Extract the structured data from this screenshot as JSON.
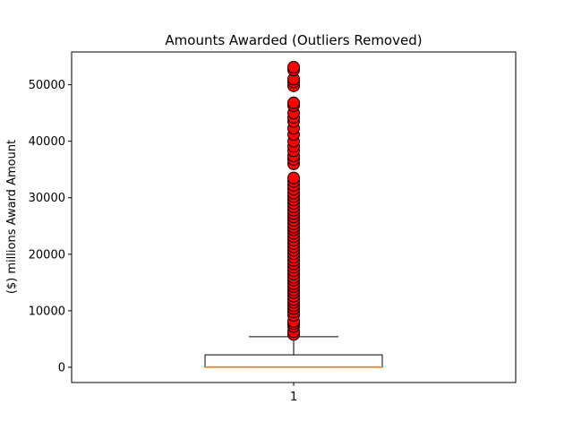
{
  "chart_data": {
    "type": "box",
    "title": "Amounts Awarded (Outliers Removed)",
    "ylabel": "($) millions Award Amount",
    "xlabel": "",
    "categories": [
      "1"
    ],
    "ylim": [
      -2700,
      55800
    ],
    "yticks": [
      0,
      10000,
      20000,
      30000,
      40000,
      50000
    ],
    "yticklabels": [
      "0",
      "10000",
      "20000",
      "30000",
      "40000",
      "50000"
    ],
    "grid": false,
    "box": {
      "whisker_low": 0,
      "q1": 0,
      "median": 50,
      "q3": 2200,
      "whisker_high": 5400
    },
    "outliers": [
      5800,
      6300,
      7200,
      7700,
      8100,
      9200,
      9800,
      10400,
      10900,
      11500,
      12000,
      12600,
      13200,
      13700,
      14300,
      14800,
      15400,
      15900,
      16500,
      17100,
      17700,
      18300,
      18900,
      19500,
      20100,
      20700,
      21300,
      21900,
      22500,
      23100,
      23700,
      24300,
      24800,
      25400,
      26000,
      26600,
      27200,
      27800,
      28400,
      29000,
      29600,
      30200,
      30800,
      31500,
      32200,
      32900,
      33500,
      36000,
      36800,
      37400,
      38300,
      39100,
      40000,
      41200,
      42300,
      43500,
      44200,
      45000,
      46300,
      46800,
      49800,
      50500,
      51000,
      52600,
      53100
    ],
    "colors": {
      "outlier_fill": "#ff0000",
      "outlier_edge": "#000000",
      "median": "#ff7f0e",
      "box_edge": "#000000",
      "box_fill": "#ffffff"
    }
  }
}
